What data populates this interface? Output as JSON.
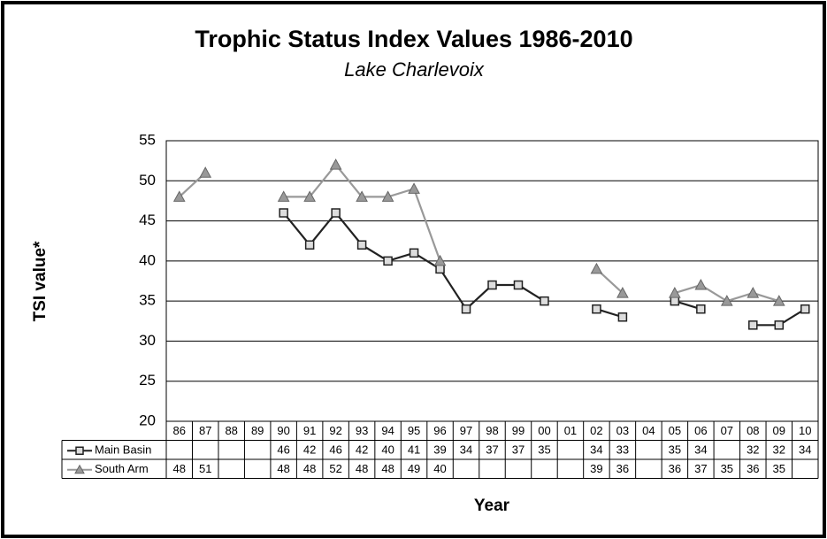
{
  "chart_data": {
    "type": "line",
    "title": "Trophic Status Index Values 1986-2010",
    "subtitle": "Lake Charlevoix",
    "x_label": "Year",
    "y_label": "TSI value*",
    "categories": [
      "86",
      "87",
      "88",
      "89",
      "90",
      "91",
      "92",
      "93",
      "94",
      "95",
      "96",
      "97",
      "98",
      "99",
      "00",
      "01",
      "02",
      "03",
      "04",
      "05",
      "06",
      "07",
      "08",
      "09",
      "10"
    ],
    "series": [
      {
        "name": "Main Basin",
        "color": "#222222",
        "marker": "square",
        "values": [
          null,
          null,
          null,
          null,
          46,
          42,
          46,
          42,
          40,
          41,
          39,
          34,
          37,
          37,
          35,
          null,
          34,
          33,
          null,
          35,
          34,
          null,
          32,
          32,
          34
        ]
      },
      {
        "name": "South Arm",
        "color": "#999999",
        "marker": "triangle",
        "values": [
          48,
          51,
          null,
          null,
          48,
          48,
          52,
          48,
          48,
          49,
          40,
          null,
          null,
          null,
          null,
          null,
          39,
          36,
          null,
          36,
          37,
          35,
          36,
          35,
          null
        ]
      }
    ],
    "ylim": [
      20,
      55
    ],
    "yticks": [
      20,
      25,
      30,
      35,
      40,
      45,
      50,
      55
    ],
    "grid": true
  }
}
